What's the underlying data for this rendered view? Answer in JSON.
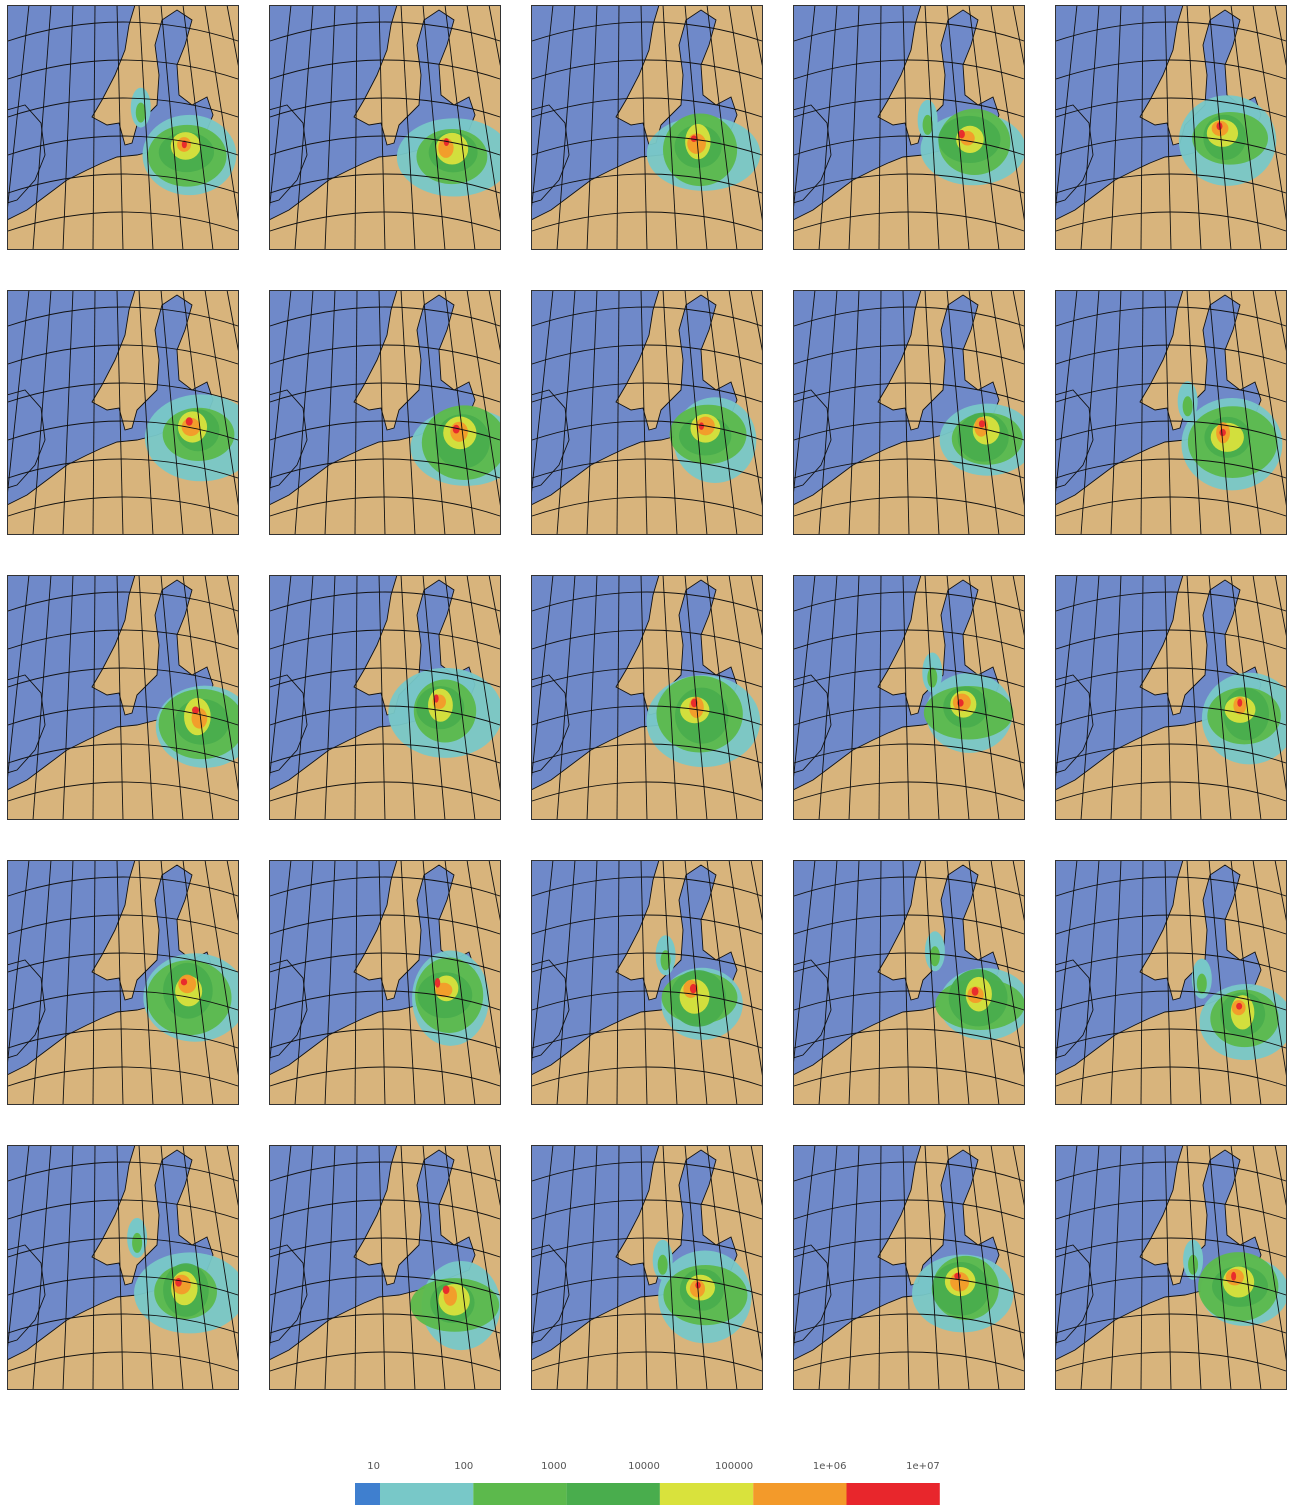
{
  "colorbar": {
    "scale": "log",
    "ticks": [
      10,
      100,
      1000,
      10000,
      100000,
      {
        "value": 1000000,
        "label": "1e+06"
      },
      {
        "value": 10000000,
        "label": "1e+07"
      }
    ],
    "colors": [
      "#3f7fcf",
      "#78c8c8",
      "#5cb94c",
      "#49ad4d",
      "#d9e23c",
      "#f39a2a",
      "#e8262c"
    ]
  },
  "panels": {
    "rows": 5,
    "columns": 5,
    "sea_color": "#6f89c9",
    "land_color": "#d8b47c"
  }
}
